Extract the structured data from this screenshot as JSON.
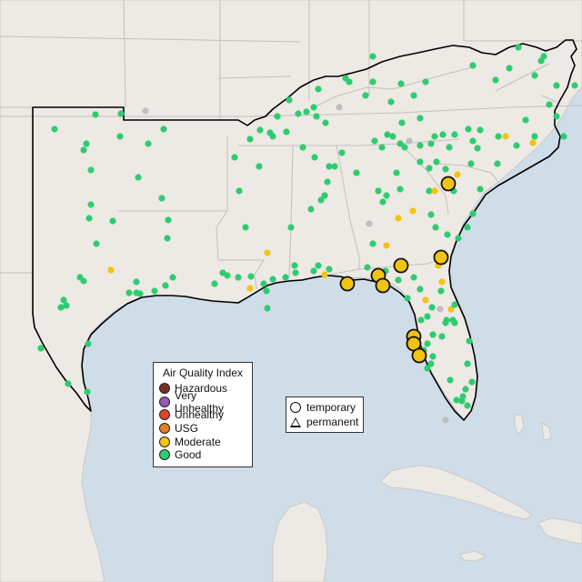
{
  "legend": {
    "title": "Air Quality Index",
    "categories": [
      {
        "label": "Hazardous",
        "color": "#7a2e2a"
      },
      {
        "label": "Very Unhealthy",
        "color": "#9b59b6"
      },
      {
        "label": "Unhealthy",
        "color": "#e0452a"
      },
      {
        "label": "USG",
        "color": "#e67e22"
      },
      {
        "label": "Moderate",
        "color": "#f2c40f"
      },
      {
        "label": "Good",
        "color": "#2ecc71"
      }
    ]
  },
  "monitor_types": {
    "temporary": "temporary",
    "permanent": "permanent"
  },
  "colors": {
    "ocean": "#cfdde9",
    "land": "#ede9e4",
    "state_border": "#c4bfba",
    "region_border": "#000000",
    "no_data": "#bfbfbf"
  }
}
